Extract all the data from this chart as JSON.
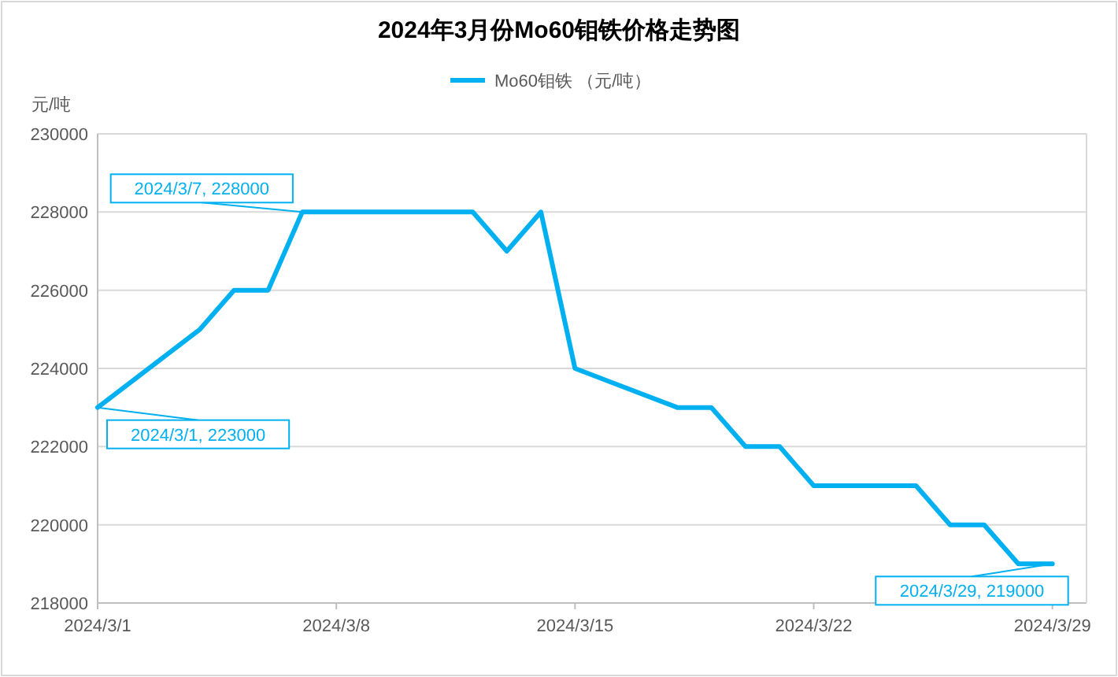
{
  "chart_data": {
    "type": "line",
    "title": "2024年3月份Mo60钼铁价格走势图",
    "ylabel": "元/吨",
    "legend": "top",
    "grid": "y",
    "marker": "none",
    "line_style": "solid",
    "x": [
      "2024-03-01",
      "2024-03-04",
      "2024-03-05",
      "2024-03-06",
      "2024-03-07",
      "2024-03-08",
      "2024-03-11",
      "2024-03-12",
      "2024-03-13",
      "2024-03-14",
      "2024-03-15",
      "2024-03-18",
      "2024-03-19",
      "2024-03-20",
      "2024-03-21",
      "2024-03-22",
      "2024-03-25",
      "2024-03-26",
      "2024-03-27",
      "2024-03-28",
      "2024-03-29"
    ],
    "series": [
      {
        "name": "Mo60钼铁 （元/吨）",
        "color": "#00b0f0",
        "values": [
          223000,
          225000,
          226000,
          226000,
          228000,
          228000,
          228000,
          228000,
          227000,
          228000,
          224000,
          223000,
          223000,
          222000,
          222000,
          221000,
          221000,
          220000,
          220000,
          219000,
          219000
        ]
      }
    ],
    "xlim": [
      "2024-03-01",
      "2024-03-30"
    ],
    "xticks": [
      {
        "value": "2024-03-01",
        "label": "2024/3/1"
      },
      {
        "value": "2024-03-08",
        "label": "2024/3/8"
      },
      {
        "value": "2024-03-15",
        "label": "2024/3/15"
      },
      {
        "value": "2024-03-22",
        "label": "2024/3/22"
      },
      {
        "value": "2024-03-29",
        "label": "2024/3/29"
      }
    ],
    "ylim": [
      218000,
      230000
    ],
    "yticks": [
      218000,
      220000,
      222000,
      224000,
      226000,
      228000,
      230000
    ],
    "annotations": [
      {
        "text": "2024/3/1, 223000",
        "x": "2024-03-01",
        "y": 223000
      },
      {
        "text": "2024/3/7, 228000",
        "x": "2024-03-07",
        "y": 228000
      },
      {
        "text": "2024/3/29, 219000",
        "x": "2024-03-29",
        "y": 219000
      }
    ]
  }
}
